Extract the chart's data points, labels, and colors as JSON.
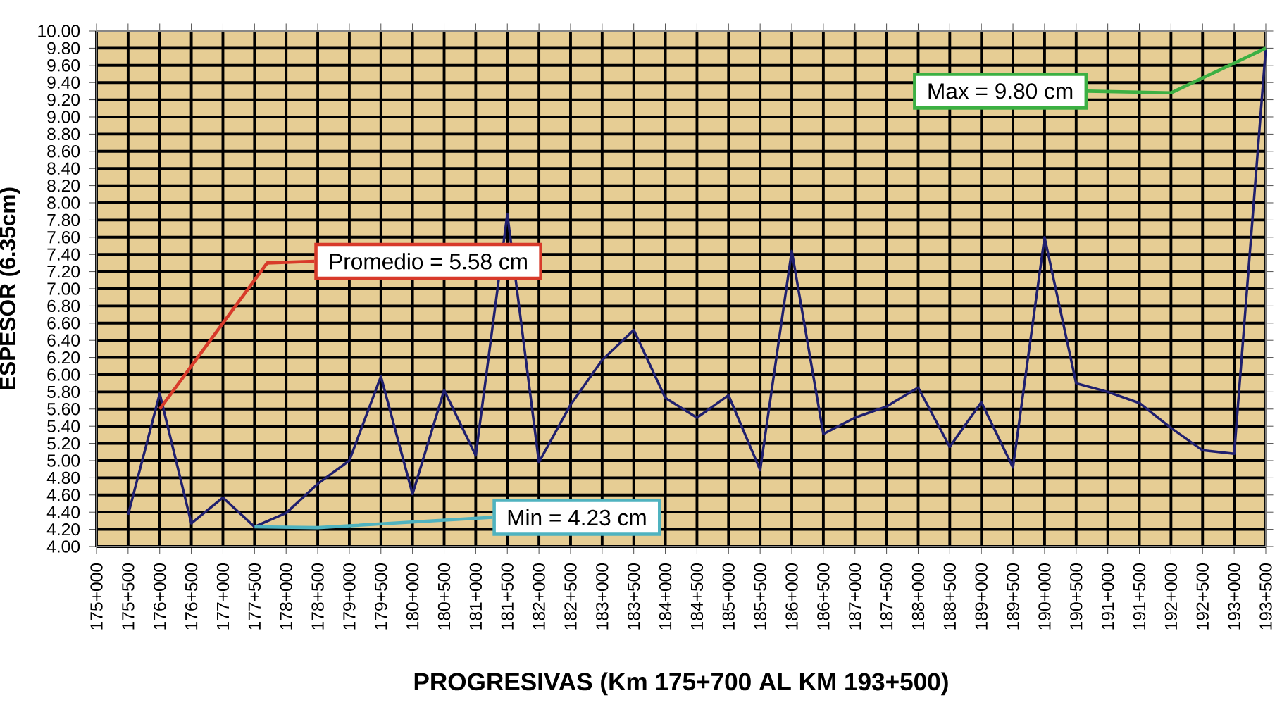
{
  "chart_data": {
    "type": "line",
    "xlabel": "PROGRESIVAS (Km 175+700 AL KM 193+500)",
    "ylabel": "ESPESOR (6.35cm)",
    "categories": [
      "175+000",
      "175+500",
      "176+000",
      "176+500",
      "177+000",
      "177+500",
      "178+000",
      "178+500",
      "179+000",
      "179+500",
      "180+000",
      "180+500",
      "181+000",
      "181+500",
      "182+000",
      "182+500",
      "183+000",
      "183+500",
      "184+000",
      "184+500",
      "185+000",
      "185+500",
      "186+000",
      "186+500",
      "187+000",
      "187+500",
      "188+000",
      "188+500",
      "189+000",
      "189+500",
      "190+000",
      "190+500",
      "191+000",
      "191+500",
      "192+000",
      "192+500",
      "193+000",
      "193+500"
    ],
    "series": [
      {
        "color": "#1f1f6e",
        "values": [
          null,
          4.37,
          5.78,
          4.27,
          4.57,
          4.23,
          4.39,
          4.73,
          5.0,
          5.98,
          4.61,
          5.82,
          5.06,
          7.87,
          4.98,
          5.65,
          6.17,
          6.52,
          5.73,
          5.5,
          5.76,
          4.89,
          7.44,
          5.31,
          5.5,
          5.63,
          5.85,
          5.16,
          5.68,
          4.92,
          7.6,
          5.9,
          5.8,
          5.67,
          5.38,
          5.12,
          5.08,
          9.8
        ]
      }
    ],
    "ylim": [
      4.0,
      10.0
    ],
    "yticks": [
      {
        "value": 4.0,
        "label": "4.00"
      },
      {
        "value": 4.2,
        "label": "4.20"
      },
      {
        "value": 4.4,
        "label": "4.40"
      },
      {
        "value": 4.6,
        "label": "4.60"
      },
      {
        "value": 4.8,
        "label": "4.80"
      },
      {
        "value": 5.0,
        "label": "5.00"
      },
      {
        "value": 5.2,
        "label": "5.20"
      },
      {
        "value": 5.4,
        "label": "5.40"
      },
      {
        "value": 5.6,
        "label": "5.60"
      },
      {
        "value": 5.8,
        "label": "5.80"
      },
      {
        "value": 6.0,
        "label": "6.00"
      },
      {
        "value": 6.2,
        "label": "6.20"
      },
      {
        "value": 6.4,
        "label": "6.40"
      },
      {
        "value": 6.6,
        "label": "6.60"
      },
      {
        "value": 6.8,
        "label": "6.80"
      },
      {
        "value": 7.0,
        "label": "7.00"
      },
      {
        "value": 7.2,
        "label": "7.20"
      },
      {
        "value": 7.4,
        "label": "7.40"
      },
      {
        "value": 7.6,
        "label": "7.60"
      },
      {
        "value": 7.8,
        "label": "7.80"
      },
      {
        "value": 8.0,
        "label": "8.00"
      },
      {
        "value": 8.2,
        "label": "8.20"
      },
      {
        "value": 8.4,
        "label": "8.40"
      },
      {
        "value": 8.6,
        "label": "8.60"
      },
      {
        "value": 8.8,
        "label": "8.80"
      },
      {
        "value": 9.0,
        "label": "9.00"
      },
      {
        "value": 9.2,
        "label": "9.20"
      },
      {
        "value": 9.4,
        "label": "9.40"
      },
      {
        "value": 9.6,
        "label": "9.60"
      },
      {
        "value": 9.8,
        "label": "9.80"
      },
      {
        "value": 10.0,
        "label": "10.00"
      }
    ],
    "grid": true,
    "annotations": [
      {
        "text": "Promedio = 5.58 cm",
        "x": "176+000",
        "y": 5.6
      },
      {
        "text": "Min = 4.23 cm",
        "x": "177+500",
        "y": 4.23
      },
      {
        "text": "Max =  9.80 cm",
        "x": "193+500",
        "y": 9.8
      }
    ]
  }
}
